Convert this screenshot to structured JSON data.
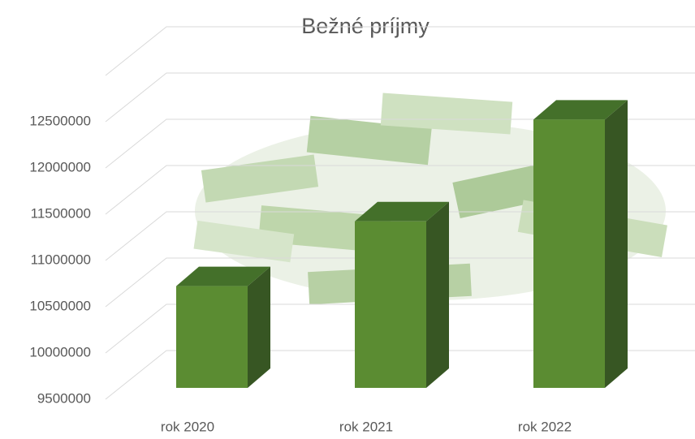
{
  "chart_data": {
    "type": "bar3d",
    "title": "Bežné príjmy",
    "categories": [
      "rok 2020",
      "rok 2021",
      "rok 2022"
    ],
    "values": [
      10600000,
      11300000,
      12400000
    ],
    "colors": {
      "front": "#5b8c32",
      "side": "#375623",
      "top": "#44702a"
    },
    "ylim": [
      9500000,
      13000000
    ],
    "yticks": [
      9500000,
      10000000,
      10500000,
      11000000,
      11500000,
      12000000,
      12500000
    ],
    "grid": true
  }
}
